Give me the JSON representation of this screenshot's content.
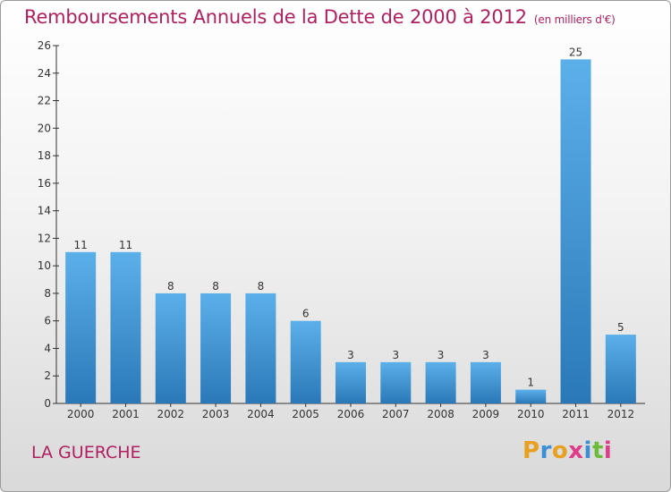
{
  "title": "Remboursements Annuels de la Dette de 2000 à 2012",
  "unit": "(en milliers d'€)",
  "city": "LA GUERCHE",
  "logo_text": "Proxiti",
  "logo_colors": [
    "#e8a020",
    "#3a8fd6",
    "#e8a020",
    "#e03c8a",
    "#3a8fd6",
    "#6dbb3a",
    "#e03c8a"
  ],
  "chart_data": {
    "type": "bar",
    "categories": [
      "2000",
      "2001",
      "2002",
      "2003",
      "2004",
      "2005",
      "2006",
      "2007",
      "2008",
      "2009",
      "2010",
      "2011",
      "2012"
    ],
    "values": [
      11,
      11,
      8,
      8,
      8,
      6,
      3,
      3,
      3,
      3,
      1,
      25,
      5
    ],
    "ylim": [
      0,
      26
    ],
    "yticks": [
      0,
      2,
      4,
      6,
      8,
      10,
      12,
      14,
      16,
      18,
      20,
      22,
      24,
      26
    ],
    "grid": false,
    "bar_color_top": "#5cb0ea",
    "bar_color_bottom": "#2a78b8"
  }
}
